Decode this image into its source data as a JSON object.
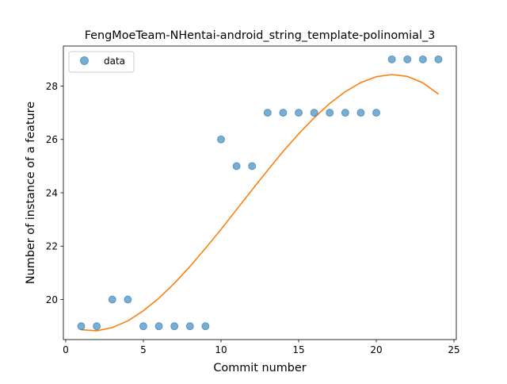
{
  "chart_data": {
    "type": "scatter",
    "title": "FengMoeTeam-NHentai-android_string_template-polinomial_3",
    "xlabel": "Commit number",
    "ylabel": "Number of instance of a feature",
    "xlim": [
      -0.15,
      25.15
    ],
    "ylim": [
      18.5,
      29.5
    ],
    "x_ticks": [
      0,
      5,
      10,
      15,
      20,
      25
    ],
    "y_ticks": [
      20,
      22,
      24,
      26,
      28
    ],
    "grid": false,
    "legend_position": "upper-left",
    "series": [
      {
        "name": "data",
        "kind": "scatter",
        "color": "#1f77b4",
        "x": [
          1,
          2,
          3,
          4,
          5,
          6,
          7,
          8,
          9,
          10,
          11,
          12,
          13,
          14,
          15,
          16,
          17,
          18,
          19,
          20,
          21,
          22,
          23,
          24
        ],
        "y": [
          19,
          19,
          20,
          20,
          19,
          19,
          19,
          19,
          19,
          26,
          25,
          25,
          27,
          27,
          27,
          27,
          27,
          27,
          27,
          27,
          29,
          29,
          29,
          29
        ]
      },
      {
        "kind": "line",
        "color": "#ff7f0e",
        "x": [
          1,
          2,
          3,
          4,
          5,
          6,
          7,
          8,
          9,
          10,
          11,
          12,
          13,
          14,
          15,
          16,
          17,
          18,
          19,
          20,
          21,
          22,
          23,
          24
        ],
        "y": [
          18.87,
          18.83,
          18.95,
          19.2,
          19.58,
          20.05,
          20.61,
          21.24,
          21.92,
          22.63,
          23.37,
          24.11,
          24.84,
          25.55,
          26.21,
          26.81,
          27.35,
          27.79,
          28.13,
          28.35,
          28.43,
          28.36,
          28.12,
          27.7
        ]
      }
    ]
  }
}
